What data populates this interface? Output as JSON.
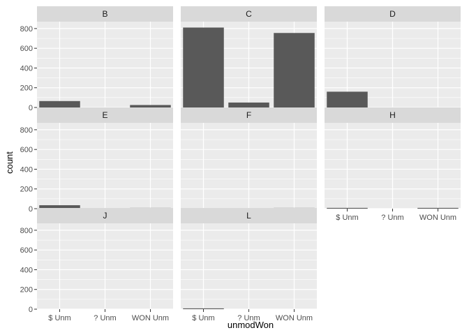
{
  "chart_data": {
    "type": "bar",
    "xlabel": "unmodWon",
    "ylabel": "count",
    "categories": [
      "$ Unm",
      "? Unm",
      "WON Unm"
    ],
    "ylim": [
      0,
      870
    ],
    "yticks": [
      0,
      200,
      400,
      600,
      800
    ],
    "grid": true,
    "bar_color": "#595959",
    "panel_background": "#ebebeb",
    "strip_background": "#d9d9d9",
    "facets": [
      {
        "label": "B",
        "values": [
          65,
          0,
          25
        ]
      },
      {
        "label": "C",
        "values": [
          810,
          50,
          755
        ]
      },
      {
        "label": "D",
        "values": [
          160,
          0,
          0
        ]
      },
      {
        "label": "E",
        "values": [
          35,
          0,
          8
        ]
      },
      {
        "label": "F",
        "values": [
          0,
          0,
          8
        ]
      },
      {
        "label": "H",
        "values": [
          8,
          0,
          8
        ]
      },
      {
        "label": "J",
        "values": [
          0,
          0,
          0
        ]
      },
      {
        "label": "L",
        "values": [
          8,
          0,
          0
        ]
      }
    ]
  }
}
